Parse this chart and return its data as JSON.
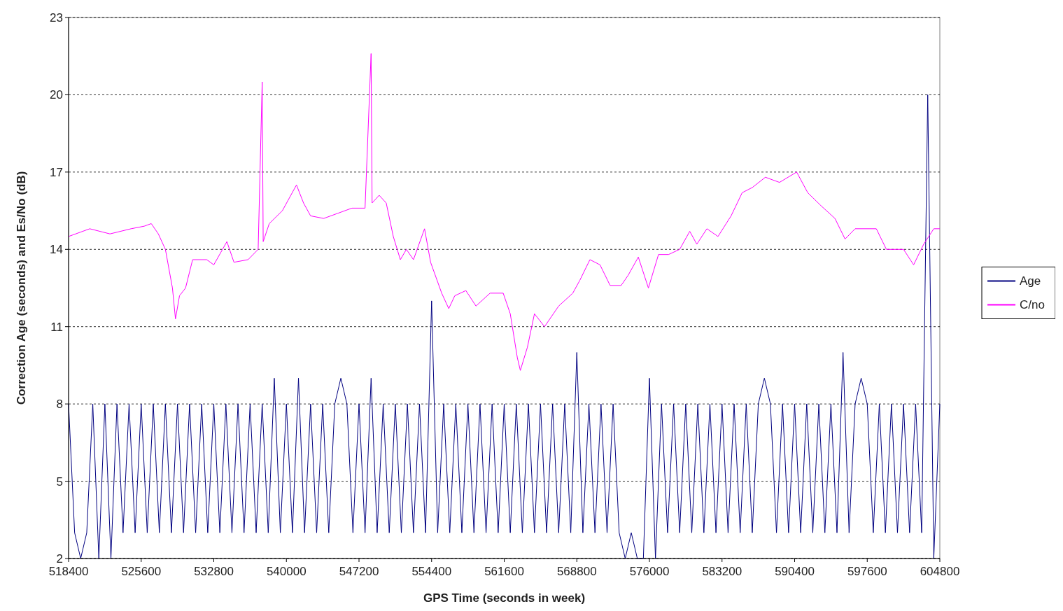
{
  "chart_data": {
    "type": "line",
    "xlabel": "GPS Time (seconds in week)",
    "ylabel": "Correction Age (seconds) and Es/No (dB)",
    "xlim": [
      518400,
      604800
    ],
    "xticks": [
      518400,
      525600,
      532800,
      540000,
      547200,
      554400,
      561600,
      568800,
      576000,
      583200,
      590400,
      597600,
      604800
    ],
    "ylim": [
      2,
      23
    ],
    "yticks": [
      2,
      5,
      8,
      11,
      14,
      17,
      20,
      23
    ],
    "grid": "y",
    "legend": "right",
    "marker": "none",
    "series": [
      {
        "name": "Age",
        "color": "#000080",
        "x": [
          518400,
          519000,
          519600,
          520200,
          520800,
          521400,
          522000,
          522600,
          523200,
          523800,
          524400,
          525000,
          525600,
          526200,
          526800,
          527400,
          528000,
          528600,
          529200,
          529800,
          530400,
          531000,
          531600,
          532200,
          532800,
          533400,
          534000,
          534600,
          535200,
          535800,
          536400,
          537000,
          537600,
          538200,
          538800,
          539400,
          540000,
          540600,
          541200,
          541800,
          542400,
          543000,
          543600,
          544200,
          544800,
          545400,
          546000,
          546600,
          547200,
          547800,
          548400,
          549000,
          549600,
          550200,
          550800,
          551400,
          552000,
          552600,
          553200,
          553800,
          554400,
          555000,
          555600,
          556200,
          556800,
          557400,
          558000,
          558600,
          559200,
          559800,
          560400,
          561000,
          561600,
          562200,
          562800,
          563400,
          564000,
          564600,
          565200,
          565800,
          566400,
          567000,
          567600,
          568200,
          568800,
          569400,
          570000,
          570600,
          571200,
          571800,
          572400,
          573000,
          573600,
          574200,
          574800,
          575400,
          576000,
          576600,
          577200,
          577800,
          578400,
          579000,
          579600,
          580200,
          580800,
          581400,
          582000,
          582600,
          583200,
          583800,
          584400,
          585000,
          585600,
          586200,
          586800,
          587400,
          588000,
          588600,
          589200,
          589800,
          590400,
          591000,
          591600,
          592200,
          592800,
          593400,
          594000,
          594600,
          595200,
          595800,
          596400,
          597000,
          597600,
          598200,
          598800,
          599400,
          600000,
          600600,
          601200,
          601800,
          602400,
          603000,
          603600,
          604200,
          604800
        ],
        "values": [
          8,
          3,
          2,
          3,
          8,
          2,
          8,
          2,
          8,
          3,
          8,
          3,
          8,
          3,
          8,
          3,
          8,
          3,
          8,
          3,
          8,
          3,
          8,
          3,
          8,
          3,
          8,
          3,
          8,
          3,
          8,
          3,
          8,
          3,
          9,
          3,
          8,
          3,
          9,
          3,
          8,
          3,
          8,
          3,
          8,
          9,
          8,
          3,
          8,
          3,
          9,
          3,
          8,
          3,
          8,
          3,
          8,
          3,
          8,
          3,
          12,
          3,
          8,
          3,
          8,
          3,
          8,
          3,
          8,
          3,
          8,
          3,
          8,
          3,
          8,
          3,
          8,
          3,
          8,
          3,
          8,
          3,
          8,
          3,
          10,
          3,
          8,
          3,
          8,
          3,
          8,
          3,
          2,
          3,
          2,
          2,
          9,
          2,
          8,
          3,
          8,
          3,
          8,
          3,
          8,
          3,
          8,
          3,
          8,
          3,
          8,
          3,
          8,
          3,
          8,
          9,
          8,
          3,
          8,
          3,
          8,
          3,
          8,
          3,
          8,
          3,
          8,
          3,
          10,
          3,
          8,
          9,
          8,
          3,
          8,
          3,
          8,
          3,
          8,
          3,
          8,
          3,
          20,
          2,
          8
        ]
      },
      {
        "name": "C/no",
        "color": "#ff00ff",
        "x": [
          518400,
          520500,
          522500,
          524600,
          525900,
          526600,
          527300,
          528000,
          528700,
          529000,
          529400,
          530000,
          530700,
          532100,
          532800,
          534100,
          534800,
          536200,
          537200,
          537600,
          537700,
          538300,
          539600,
          541000,
          541700,
          542400,
          543700,
          545100,
          546500,
          547800,
          548400,
          548500,
          549200,
          549900,
          550600,
          551300,
          551900,
          552600,
          553700,
          554300,
          555400,
          556100,
          556700,
          557800,
          558800,
          560200,
          561500,
          562200,
          562900,
          563200,
          563900,
          564600,
          565600,
          567000,
          568400,
          569100,
          570100,
          571100,
          572100,
          573200,
          573900,
          574900,
          575900,
          576900,
          577900,
          579000,
          580000,
          580700,
          581700,
          582800,
          584100,
          585200,
          586200,
          587500,
          588900,
          590600,
          591700,
          593000,
          594400,
          595400,
          596400,
          598500,
          599500,
          601200,
          602200,
          603200,
          604200,
          604800
        ],
        "values": [
          14.5,
          14.8,
          14.6,
          14.8,
          14.9,
          15.0,
          14.6,
          14.0,
          12.5,
          11.3,
          12.2,
          12.5,
          13.6,
          13.6,
          13.4,
          14.3,
          13.5,
          13.6,
          14.0,
          20.5,
          14.3,
          15.0,
          15.5,
          16.5,
          15.8,
          15.3,
          15.2,
          15.4,
          15.6,
          15.6,
          21.6,
          15.8,
          16.1,
          15.8,
          14.5,
          13.6,
          14.0,
          13.6,
          14.8,
          13.5,
          12.3,
          11.7,
          12.2,
          12.4,
          11.8,
          12.3,
          12.3,
          11.5,
          9.8,
          9.3,
          10.2,
          11.5,
          11.0,
          11.8,
          12.3,
          12.8,
          13.6,
          13.4,
          12.6,
          12.6,
          13.0,
          13.7,
          12.5,
          13.8,
          13.8,
          14.0,
          14.7,
          14.2,
          14.8,
          14.5,
          15.3,
          16.2,
          16.4,
          16.8,
          16.6,
          17.0,
          16.2,
          15.7,
          15.2,
          14.4,
          14.8,
          14.8,
          14.0,
          14.0,
          13.4,
          14.2,
          14.8,
          14.8
        ]
      }
    ]
  }
}
